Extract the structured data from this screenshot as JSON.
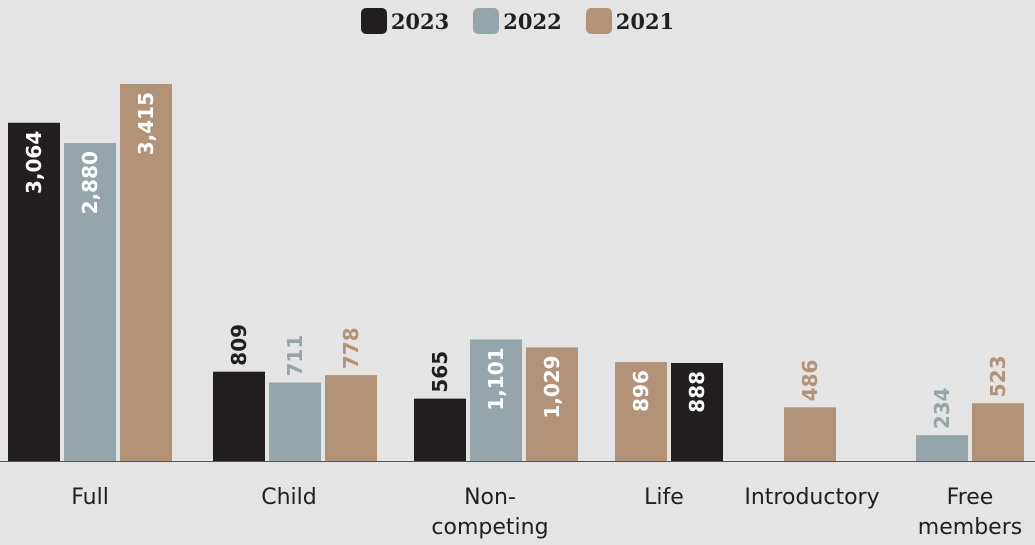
{
  "chart_data": {
    "type": "bar",
    "categories": [
      [
        "Full"
      ],
      [
        "Child"
      ],
      [
        "Non-",
        "competing"
      ],
      [
        "Life"
      ],
      [
        "Introductory"
      ],
      [
        "Free",
        "members"
      ]
    ],
    "series": [
      {
        "name": "2023",
        "color": "#231f20",
        "values": [
          3064,
          809,
          565,
          888,
          null,
          null
        ],
        "labels": [
          "3,064",
          "809",
          "565",
          "888",
          "",
          ""
        ]
      },
      {
        "name": "2022",
        "color": "#95a5ab",
        "values": [
          2880,
          711,
          1101,
          null,
          null,
          234
        ],
        "labels": [
          "2,880",
          "711",
          "1,101",
          "",
          "",
          "234"
        ]
      },
      {
        "name": "2021",
        "color": "#b39378",
        "values": [
          3415,
          778,
          1029,
          896,
          486,
          523
        ],
        "labels": [
          "3,415",
          "778",
          "1,029",
          "896",
          "486",
          "523"
        ]
      }
    ],
    "ylim": [
      0,
      3415
    ],
    "grid": false,
    "legend": "top-center"
  }
}
